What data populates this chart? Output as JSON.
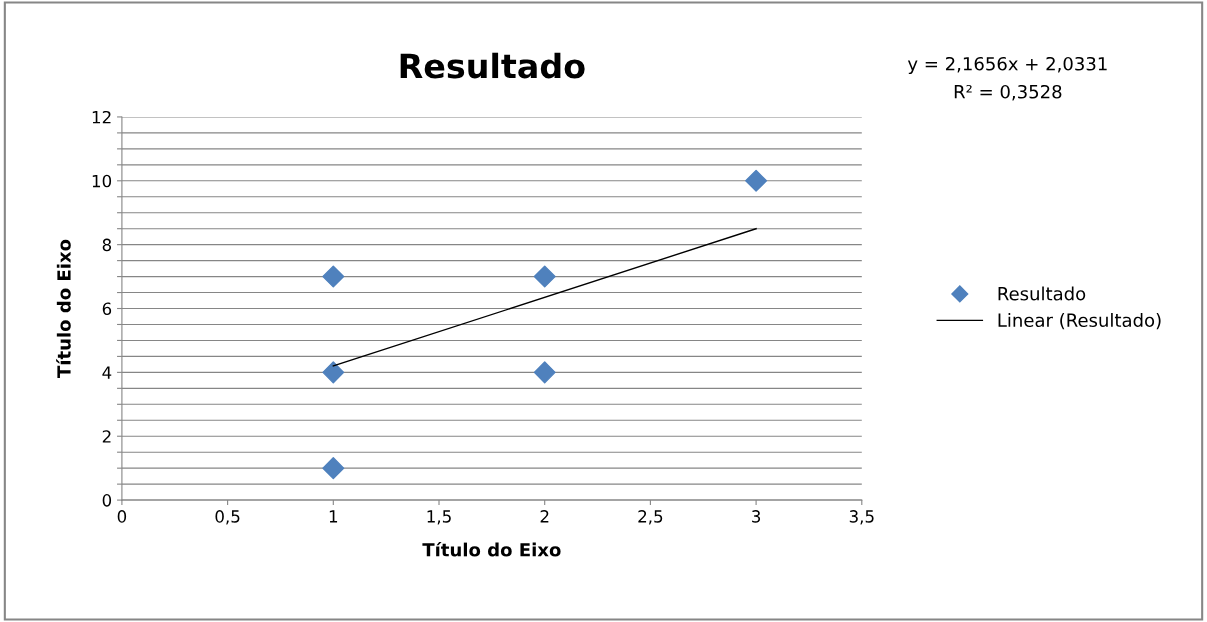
{
  "chart_data": {
    "type": "scatter",
    "title": "Resultado",
    "xlabel": "Título do Eixo",
    "ylabel": "Título do Eixo",
    "annotations": [
      "y = 2,1656x + 2,0331",
      "R² = 0,3528"
    ],
    "series": [
      {
        "name": "Resultado",
        "color": "#4f81bd",
        "x": [
          1,
          1,
          1,
          2,
          2,
          3
        ],
        "values": [
          1,
          4,
          7,
          4,
          7,
          10
        ],
        "marker": "diamond"
      },
      {
        "name": "Linear (Resultado)",
        "type": "line",
        "color": "#000000",
        "x": [
          1,
          3
        ],
        "values": [
          4.2,
          8.5
        ],
        "marker": "none",
        "line_style": "solid"
      }
    ],
    "xlim": [
      0,
      3.5
    ],
    "ylim": [
      0,
      12
    ],
    "xticks": [
      0,
      {
        "value": 0.5,
        "label": "0,5"
      },
      1,
      {
        "value": 1.5,
        "label": "1,5"
      },
      2,
      {
        "value": 2.5,
        "label": "2,5"
      },
      3,
      {
        "value": 3.5,
        "label": "3,5"
      }
    ],
    "yticks": [
      0,
      {
        "value": 0.5,
        "label": null
      },
      {
        "value": 1,
        "label": null
      },
      {
        "value": 1.5,
        "label": null
      },
      2,
      {
        "value": 2.5,
        "label": null
      },
      {
        "value": 3,
        "label": null
      },
      {
        "value": 3.5,
        "label": null
      },
      4,
      {
        "value": 4.5,
        "label": null
      },
      {
        "value": 5,
        "label": null
      },
      {
        "value": 5.5,
        "label": null
      },
      6,
      {
        "value": 6.5,
        "label": null
      },
      {
        "value": 7,
        "label": null
      },
      {
        "value": 7.5,
        "label": null
      },
      8,
      {
        "value": 8.5,
        "label": null
      },
      {
        "value": 9,
        "label": null
      },
      {
        "value": 9.5,
        "label": null
      },
      10,
      {
        "value": 10.5,
        "label": null
      },
      {
        "value": 11,
        "label": null
      },
      {
        "value": 11.5,
        "label": null
      },
      12
    ],
    "grid": "y",
    "legend": "right"
  }
}
